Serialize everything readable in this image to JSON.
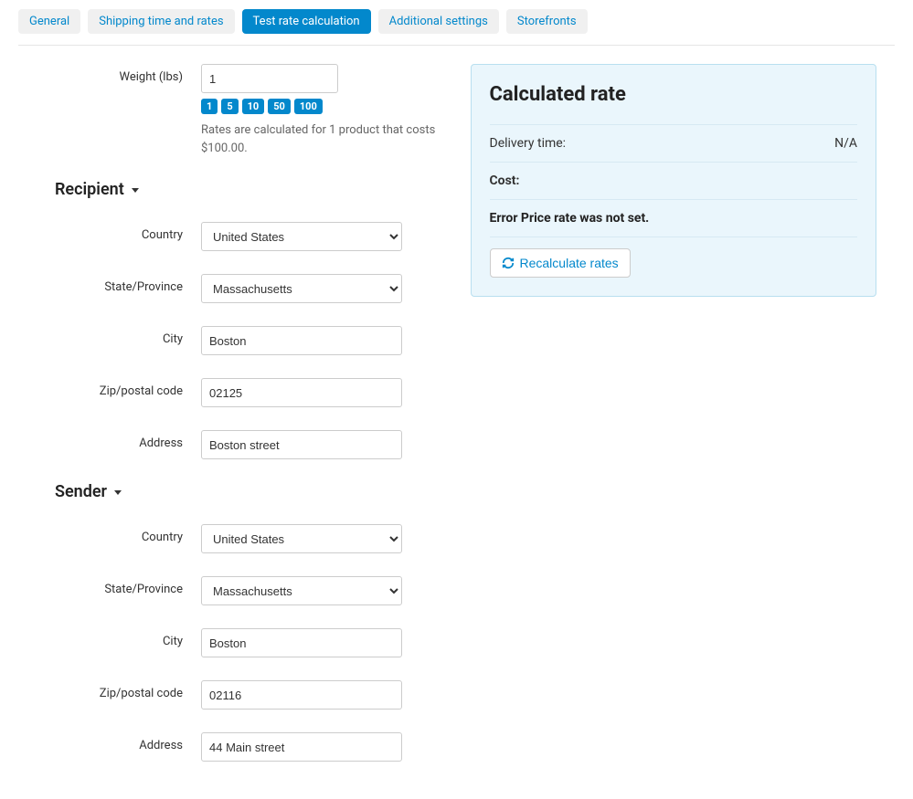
{
  "tabs": [
    {
      "label": "General",
      "active": false
    },
    {
      "label": "Shipping time and rates",
      "active": false
    },
    {
      "label": "Test rate calculation",
      "active": true
    },
    {
      "label": "Additional settings",
      "active": false
    },
    {
      "label": "Storefronts",
      "active": false
    }
  ],
  "weight": {
    "label": "Weight (lbs)",
    "value": "1",
    "presets": [
      "1",
      "5",
      "10",
      "50",
      "100"
    ],
    "hint": "Rates are calculated for 1 product that costs $100.00."
  },
  "sections": {
    "recipient": {
      "title": "Recipient",
      "country_label": "Country",
      "country_value": "United States",
      "state_label": "State/Province",
      "state_value": "Massachusetts",
      "city_label": "City",
      "city_value": "Boston",
      "zip_label": "Zip/postal code",
      "zip_value": "02125",
      "address_label": "Address",
      "address_value": "Boston street"
    },
    "sender": {
      "title": "Sender",
      "country_label": "Country",
      "country_value": "United States",
      "state_label": "State/Province",
      "state_value": "Massachusetts",
      "city_label": "City",
      "city_value": "Boston",
      "zip_label": "Zip/postal code",
      "zip_value": "02116",
      "address_label": "Address",
      "address_value": "44 Main street"
    }
  },
  "panel": {
    "title": "Calculated rate",
    "delivery_label": "Delivery time:",
    "delivery_value": "N/A",
    "cost_label": "Cost:",
    "cost_value": "",
    "error": "Error Price rate was not set.",
    "recalc_label": "Recalculate rates"
  },
  "colors": {
    "primary": "#0388cc",
    "panel_bg": "#eaf6fc",
    "panel_border": "#b8dff0",
    "text": "#333333",
    "tab_bg": "#f0f0f0"
  }
}
